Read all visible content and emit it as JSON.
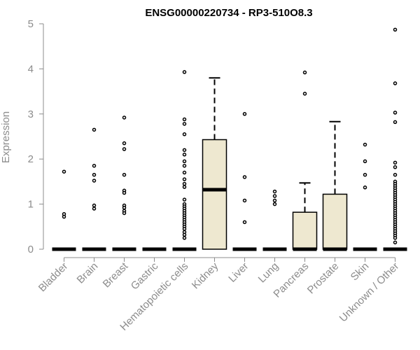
{
  "chart_data": {
    "type": "box",
    "title": "ENSG00000220734 - RP3-510O8.3",
    "ylabel": "Expression",
    "ylim": [
      0,
      5
    ],
    "yticks": [
      0,
      1,
      2,
      3,
      4,
      5
    ],
    "grid": false,
    "box_fill": "#EEE8D0",
    "categories": [
      "Bladder",
      "Brain",
      "Breast",
      "Gastric",
      "Hematopoietic cells",
      "Kidney",
      "Liver",
      "Lung",
      "Pancreas",
      "Prostate",
      "Skin",
      "Unknown / Other"
    ],
    "boxes": [
      {
        "category": "Bladder",
        "q1": 0,
        "median": 0,
        "q3": 0,
        "whisker_low": 0,
        "whisker_high": 0,
        "outliers": [
          1.72,
          0.78,
          0.72
        ]
      },
      {
        "category": "Brain",
        "q1": 0,
        "median": 0,
        "q3": 0,
        "whisker_low": 0,
        "whisker_high": 0,
        "outliers": [
          2.65,
          1.85,
          1.65,
          1.52,
          0.97,
          0.9
        ]
      },
      {
        "category": "Breast",
        "q1": 0,
        "median": 0,
        "q3": 0,
        "whisker_low": 0,
        "whisker_high": 0,
        "outliers": [
          2.92,
          2.35,
          2.22,
          1.65,
          1.3,
          1.25,
          0.97,
          0.92,
          0.85,
          0.8
        ]
      },
      {
        "category": "Gastric",
        "q1": 0,
        "median": 0,
        "q3": 0,
        "whisker_low": 0,
        "whisker_high": 0,
        "outliers": []
      },
      {
        "category": "Hematopoietic cells",
        "q1": 0,
        "median": 0,
        "q3": 0,
        "whisker_low": 0,
        "whisker_high": 0,
        "outliers": [
          3.93,
          2.88,
          2.78,
          2.55,
          2.2,
          2.1,
          1.95,
          1.85,
          1.7,
          1.55,
          1.45,
          1.38,
          1.1,
          1.0,
          0.95,
          0.9,
          0.85,
          0.8,
          0.75,
          0.7,
          0.65,
          0.6,
          0.55,
          0.5,
          0.45,
          0.38,
          0.32,
          0.25
        ]
      },
      {
        "category": "Kidney",
        "q1": 0,
        "median": 1.32,
        "q3": 2.43,
        "whisker_low": 0,
        "whisker_high": 3.8,
        "outliers": []
      },
      {
        "category": "Liver",
        "q1": 0,
        "median": 0,
        "q3": 0,
        "whisker_low": 0,
        "whisker_high": 0,
        "outliers": [
          3.0,
          1.6,
          1.08,
          0.6
        ]
      },
      {
        "category": "Lung",
        "q1": 0,
        "median": 0,
        "q3": 0,
        "whisker_low": 0,
        "whisker_high": 0,
        "outliers": [
          1.28,
          1.18,
          1.08,
          1.0
        ]
      },
      {
        "category": "Pancreas",
        "q1": 0,
        "median": 0,
        "q3": 0.82,
        "whisker_low": 0,
        "whisker_high": 1.47,
        "outliers": [
          3.92,
          3.45
        ]
      },
      {
        "category": "Prostate",
        "q1": 0,
        "median": 0,
        "q3": 1.22,
        "whisker_low": 0,
        "whisker_high": 2.83,
        "outliers": []
      },
      {
        "category": "Skin",
        "q1": 0,
        "median": 0,
        "q3": 0,
        "whisker_low": 0,
        "whisker_high": 0,
        "outliers": [
          2.32,
          1.95,
          1.65,
          1.37
        ]
      },
      {
        "category": "Unknown / Other",
        "q1": 0,
        "median": 0,
        "q3": 0,
        "whisker_low": 0,
        "whisker_high": 0,
        "outliers": [
          4.87,
          3.68,
          3.03,
          2.82,
          1.92,
          1.82,
          1.65,
          1.5,
          1.45,
          1.4,
          1.35,
          1.3,
          1.25,
          1.2,
          1.15,
          1.1,
          1.05,
          1.0,
          0.95,
          0.9,
          0.85,
          0.8,
          0.75,
          0.7,
          0.65,
          0.6,
          0.55,
          0.5,
          0.45,
          0.4,
          0.35,
          0.3,
          0.25,
          0.15
        ]
      }
    ]
  }
}
